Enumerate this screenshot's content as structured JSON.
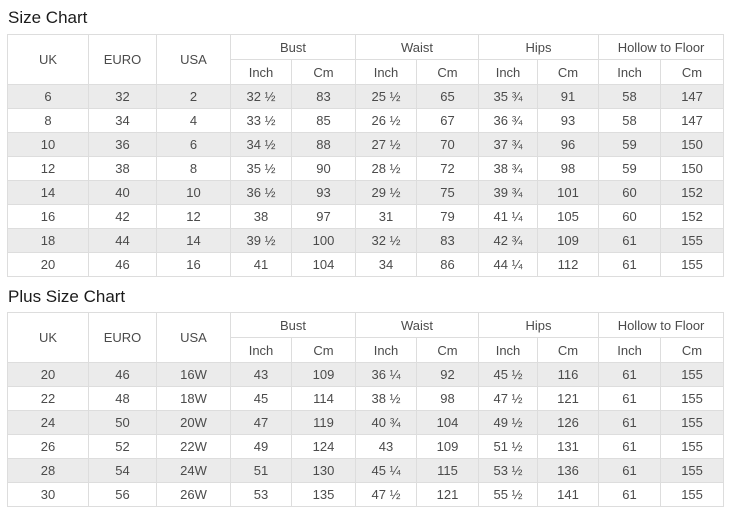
{
  "colors": {
    "stripe_row_background": "#ebebeb",
    "table_border": "#dddddd",
    "cell_text": "#4b4b4b",
    "title_text": "#1b1b1b"
  },
  "tables": [
    {
      "title": "Size Chart",
      "base_columns": [
        "UK",
        "EURO",
        "USA"
      ],
      "groups": [
        "Bust",
        "Waist",
        "Hips",
        "Hollow to Floor"
      ],
      "sub_columns": [
        "Inch",
        "Cm"
      ],
      "rows": [
        [
          "6",
          "32",
          "2",
          "32 ½",
          "83",
          "25 ½",
          "65",
          "35 ¾",
          "91",
          "58",
          "147"
        ],
        [
          "8",
          "34",
          "4",
          "33 ½",
          "85",
          "26 ½",
          "67",
          "36 ¾",
          "93",
          "58",
          "147"
        ],
        [
          "10",
          "36",
          "6",
          "34 ½",
          "88",
          "27 ½",
          "70",
          "37 ¾",
          "96",
          "59",
          "150"
        ],
        [
          "12",
          "38",
          "8",
          "35 ½",
          "90",
          "28 ½",
          "72",
          "38 ¾",
          "98",
          "59",
          "150"
        ],
        [
          "14",
          "40",
          "10",
          "36 ½",
          "93",
          "29 ½",
          "75",
          "39 ¾",
          "101",
          "60",
          "152"
        ],
        [
          "16",
          "42",
          "12",
          "38",
          "97",
          "31",
          "79",
          "41 ¼",
          "105",
          "60",
          "152"
        ],
        [
          "18",
          "44",
          "14",
          "39 ½",
          "100",
          "32 ½",
          "83",
          "42 ¾",
          "109",
          "61",
          "155"
        ],
        [
          "20",
          "46",
          "16",
          "41",
          "104",
          "34",
          "86",
          "44 ¼",
          "112",
          "61",
          "155"
        ]
      ]
    },
    {
      "title": "Plus Size Chart",
      "base_columns": [
        "UK",
        "EURO",
        "USA"
      ],
      "groups": [
        "Bust",
        "Waist",
        "Hips",
        "Hollow to Floor"
      ],
      "sub_columns": [
        "Inch",
        "Cm"
      ],
      "rows": [
        [
          "20",
          "46",
          "16W",
          "43",
          "109",
          "36 ¼",
          "92",
          "45 ½",
          "116",
          "61",
          "155"
        ],
        [
          "22",
          "48",
          "18W",
          "45",
          "114",
          "38 ½",
          "98",
          "47 ½",
          "121",
          "61",
          "155"
        ],
        [
          "24",
          "50",
          "20W",
          "47",
          "119",
          "40 ¾",
          "104",
          "49 ½",
          "126",
          "61",
          "155"
        ],
        [
          "26",
          "52",
          "22W",
          "49",
          "124",
          "43",
          "109",
          "51 ½",
          "131",
          "61",
          "155"
        ],
        [
          "28",
          "54",
          "24W",
          "51",
          "130",
          "45 ¼",
          "115",
          "53 ½",
          "136",
          "61",
          "155"
        ],
        [
          "30",
          "56",
          "26W",
          "53",
          "135",
          "47 ½",
          "121",
          "55 ½",
          "141",
          "61",
          "155"
        ]
      ]
    }
  ]
}
